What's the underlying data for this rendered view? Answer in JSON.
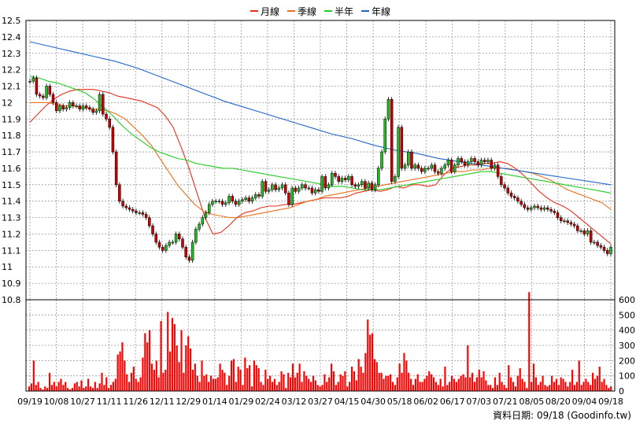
{
  "legend": [
    {
      "name": "月線",
      "color": "#e8301a"
    },
    {
      "name": "季線",
      "color": "#e8701a"
    },
    {
      "name": "半年",
      "color": "#22cc22"
    },
    {
      "name": "年線",
      "color": "#2266cc"
    }
  ],
  "footer_text": "資料日期: 09/18  (Goodinfo.tw)",
  "colors": {
    "up": "#22bb22",
    "down": "#cc0000",
    "volume": "#ff0000",
    "grid": "#999999",
    "frame": "#000000"
  },
  "chart_data": [
    {
      "type": "candlestick",
      "ylim": [
        10.8,
        12.5
      ],
      "yticks": [
        10.8,
        10.9,
        11,
        11.1,
        11.2,
        11.3,
        11.4,
        11.5,
        11.6,
        11.7,
        11.8,
        11.9,
        12,
        12.1,
        12.2,
        12.3,
        12.4,
        12.5
      ],
      "xticks": [
        "09/19",
        "10/08",
        "10/27",
        "11/11",
        "11/26",
        "12/11",
        "12/29",
        "01/14",
        "01/29",
        "02/24",
        "03/12",
        "03/27",
        "04/15",
        "04/30",
        "05/18",
        "06/02",
        "06/17",
        "07/03",
        "07/21",
        "08/05",
        "08/20",
        "09/04",
        "09/18"
      ],
      "grid": true,
      "close": [
        12.13,
        12.15,
        12.05,
        12.04,
        12.03,
        12.1,
        12.05,
        12,
        11.95,
        11.98,
        11.96,
        11.97,
        12,
        11.98,
        11.98,
        11.96,
        11.98,
        11.97,
        11.96,
        11.94,
        11.95,
        12.05,
        11.93,
        11.9,
        11.85,
        11.7,
        11.5,
        11.4,
        11.37,
        11.36,
        11.35,
        11.34,
        11.33,
        11.33,
        11.32,
        11.3,
        11.25,
        11.2,
        11.15,
        11.12,
        11.1,
        11.13,
        11.15,
        11.15,
        11.2,
        11.17,
        11.12,
        11.06,
        11.04,
        11.15,
        11.23,
        11.26,
        11.3,
        11.33,
        11.38,
        11.4,
        11.4,
        11.4,
        11.38,
        11.39,
        11.43,
        11.4,
        11.38,
        11.4,
        11.41,
        11.42,
        11.4,
        11.42,
        11.44,
        11.43,
        11.52,
        11.46,
        11.47,
        11.5,
        11.47,
        11.48,
        11.5,
        11.45,
        11.38,
        11.48,
        11.46,
        11.48,
        11.5,
        11.48,
        11.48,
        11.45,
        11.47,
        11.46,
        11.55,
        11.48,
        11.5,
        11.57,
        11.55,
        11.52,
        11.54,
        11.53,
        11.55,
        11.5,
        11.49,
        11.5,
        11.52,
        11.48,
        11.51,
        11.47,
        11.5,
        11.6,
        11.7,
        11.9,
        12.02,
        11.52,
        11.55,
        11.85,
        11.6,
        11.62,
        11.7,
        11.6,
        11.62,
        11.6,
        11.58,
        11.6,
        11.6,
        11.62,
        11.58,
        11.57,
        11.6,
        11.62,
        11.65,
        11.58,
        11.62,
        11.66,
        11.64,
        11.62,
        11.64,
        11.66,
        11.64,
        11.62,
        11.65,
        11.64,
        11.65,
        11.6,
        11.62,
        11.55,
        11.5,
        11.48,
        11.45,
        11.43,
        11.42,
        11.4,
        11.38,
        11.36,
        11.35,
        11.36,
        11.37,
        11.36,
        11.35,
        11.36,
        11.35,
        11.34,
        11.33,
        11.3,
        11.28,
        11.28,
        11.27,
        11.26,
        11.25,
        11.22,
        11.22,
        11.2,
        11.22,
        11.15,
        11.15,
        11.13,
        11.12,
        11.1,
        11.08,
        11.12
      ],
      "ma_month": [
        11.88,
        11.93,
        11.98,
        12.02,
        12.05,
        12.07,
        12.08,
        12.08,
        12.08,
        12.07,
        12.06,
        12.04,
        12.03,
        12.02,
        12.01,
        11.99,
        11.97,
        11.92,
        11.85,
        11.73,
        11.6,
        11.45,
        11.3,
        11.2,
        11.21,
        11.25,
        11.3,
        11.33,
        11.34,
        11.36,
        11.37,
        11.37,
        11.38,
        11.38,
        11.39,
        11.4,
        11.41,
        11.42,
        11.42,
        11.42,
        11.43,
        11.45,
        11.46,
        11.47,
        11.46,
        11.47,
        11.49,
        11.48,
        11.5,
        11.5,
        11.49,
        11.5,
        11.56,
        11.6,
        11.61,
        11.62,
        11.62,
        11.63,
        11.63,
        11.64,
        11.63,
        11.6,
        11.56,
        11.51,
        11.46,
        11.42,
        11.39,
        11.37,
        11.34,
        11.3,
        11.26,
        11.22,
        11.18,
        11.14
      ],
      "ma_quarter": [
        12,
        12,
        12,
        11.99,
        11.98,
        11.98,
        11.97,
        11.96,
        11.96,
        11.95,
        11.93,
        11.9,
        11.85,
        11.8,
        11.74,
        11.66,
        11.58,
        11.5,
        11.44,
        11.38,
        11.34,
        11.32,
        11.31,
        11.3,
        11.3,
        11.31,
        11.32,
        11.33,
        11.34,
        11.35,
        11.36,
        11.38,
        11.4,
        11.41,
        11.43,
        11.44,
        11.45,
        11.46,
        11.47,
        11.48,
        11.49,
        11.5,
        11.51,
        11.52,
        11.53,
        11.54,
        11.55,
        11.56,
        11.57,
        11.58,
        11.58,
        11.59,
        11.59,
        11.6,
        11.6,
        11.6,
        11.59,
        11.58,
        11.57,
        11.55,
        11.53,
        11.5,
        11.47,
        11.45,
        11.43,
        11.41,
        11.39,
        11.35
      ],
      "ma_half": [
        12.16,
        12.15,
        12.13,
        12.12,
        12.1,
        12.08,
        12.06,
        12.02,
        11.97,
        11.92,
        11.86,
        11.81,
        11.77,
        11.73,
        11.7,
        11.68,
        11.66,
        11.65,
        11.63,
        11.62,
        11.61,
        11.6,
        11.6,
        11.59,
        11.58,
        11.57,
        11.56,
        11.55,
        11.54,
        11.53,
        11.52,
        11.51,
        11.5,
        11.49,
        11.49,
        11.48,
        11.47,
        11.47,
        11.47,
        11.48,
        11.49,
        11.5,
        11.51,
        11.52,
        11.53,
        11.54,
        11.55,
        11.56,
        11.57,
        11.58,
        11.58,
        11.57,
        11.56,
        11.55,
        11.54,
        11.53,
        11.52,
        11.51,
        11.5,
        11.49,
        11.48,
        11.47,
        11.46,
        11.45
      ],
      "ma_year": [
        12.37,
        12.34,
        12.31,
        12.28,
        12.25,
        12.21,
        12.16,
        12.11,
        12.06,
        12.01,
        11.97,
        11.93,
        11.89,
        11.85,
        11.81,
        11.78,
        11.74,
        11.71,
        11.69,
        11.66,
        11.64,
        11.62,
        11.6,
        11.58,
        11.56,
        11.54,
        11.52,
        11.5
      ]
    },
    {
      "type": "bar",
      "ylim": [
        0,
        600
      ],
      "yticks": [
        0,
        100,
        200,
        300,
        400,
        500,
        600
      ],
      "values": [
        30,
        50,
        200,
        40,
        60,
        20,
        10,
        30,
        20,
        120,
        40,
        60,
        30,
        60,
        80,
        40,
        60,
        20,
        10,
        20,
        50,
        60,
        30,
        70,
        20,
        30,
        80,
        30,
        20,
        60,
        20,
        50,
        120,
        40,
        90,
        20,
        40,
        60,
        80,
        240,
        260,
        320,
        200,
        110,
        60,
        120,
        160,
        80,
        60,
        90,
        220,
        380,
        320,
        400,
        180,
        140,
        200,
        90,
        460,
        120,
        140,
        520,
        260,
        480,
        440,
        300,
        190,
        400,
        120,
        300,
        360,
        280,
        140,
        180,
        100,
        60,
        200,
        100,
        110,
        60,
        100,
        80,
        80,
        90,
        180,
        140,
        120,
        40,
        100,
        200,
        210,
        60,
        160,
        140,
        40,
        220,
        150,
        170,
        30,
        200,
        170,
        150,
        60,
        40,
        140,
        80,
        100,
        60,
        80,
        40,
        60,
        130,
        110,
        20,
        120,
        90,
        180,
        90,
        120,
        180,
        60,
        130,
        100,
        80,
        60,
        100,
        70,
        40,
        30,
        40,
        110,
        60,
        90,
        180,
        130,
        40,
        60,
        110,
        100,
        130,
        30,
        60,
        160,
        130,
        70,
        210,
        160,
        120,
        250,
        470,
        370,
        380,
        210,
        190,
        120,
        120,
        80,
        100,
        100,
        110,
        60,
        40,
        90,
        180,
        120,
        250,
        200,
        120,
        80,
        40,
        80,
        110,
        60,
        60,
        80,
        100,
        130,
        110,
        90,
        60,
        40,
        80,
        30,
        160,
        40,
        60,
        100,
        80,
        60,
        80,
        100,
        110,
        90,
        300,
        90,
        120,
        60,
        90,
        140,
        90,
        130,
        70,
        40,
        40,
        20,
        90,
        40,
        120,
        60,
        40,
        20,
        170,
        90,
        60,
        30,
        100,
        150,
        80,
        60,
        20,
        650,
        60,
        180,
        90,
        40,
        60,
        100,
        40,
        30,
        40,
        100,
        60,
        80,
        40,
        90,
        80,
        60,
        30,
        60,
        140,
        40,
        60,
        200,
        40,
        60,
        80,
        60,
        40,
        120,
        80,
        100,
        160,
        60,
        80,
        40,
        20,
        30
      ]
    }
  ]
}
